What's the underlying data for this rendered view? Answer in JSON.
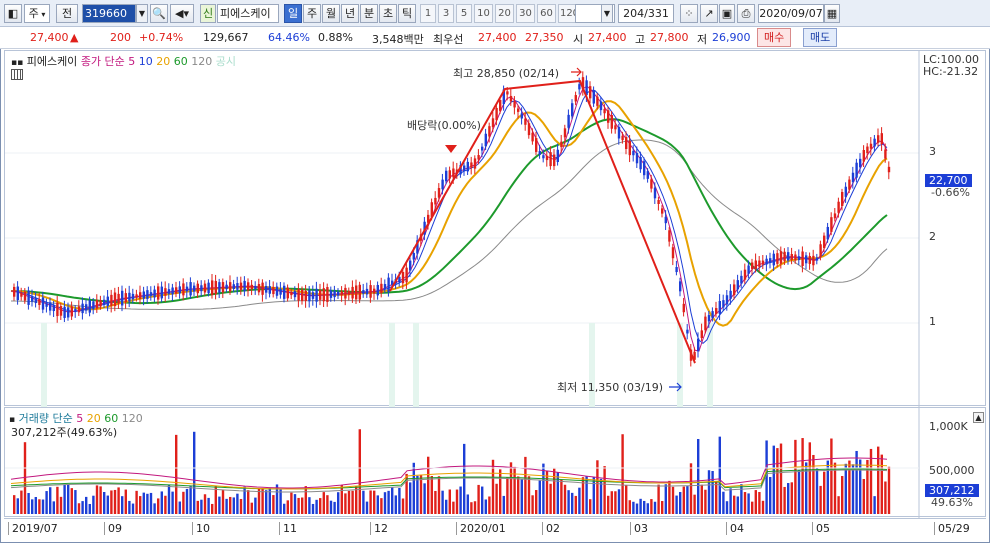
{
  "toolbar": {
    "period_label": "주",
    "prev_label": "전",
    "stock_code": "319660",
    "shin_label": "신",
    "stock_name": "피에스케이",
    "tabs": [
      "일",
      "주",
      "월",
      "년",
      "분",
      "초",
      "틱"
    ],
    "active_tab": "일",
    "intervals": [
      "1",
      "3",
      "5",
      "10",
      "20",
      "30",
      "60",
      "120"
    ],
    "page_counter": "204",
    "page_total": "/331",
    "date": "2020/09/07"
  },
  "quote": {
    "price": "27,400",
    "arrow": "▲",
    "change": "200",
    "change_pct": "+0.74%",
    "volume": "129,667",
    "ratio": "64.46%",
    "turnover": "0.88%",
    "trade_value": "3,548백만",
    "best_label": "최우선",
    "best_ask": "27,400",
    "best_bid": "27,350",
    "open_label": "시",
    "open": "27,400",
    "high_label": "고",
    "high": "27,800",
    "low_label": "저",
    "low": "26,900",
    "buy_label": "매수",
    "sell_label": "매도"
  },
  "price_panel": {
    "name": "피에스케이",
    "close_label": "종가 단순",
    "ma": [
      "5",
      "10",
      "20",
      "60",
      "120"
    ],
    "extra_label": "공시",
    "lc": "LC:100.00",
    "hc": "HC:-21.32",
    "axis": [
      "3",
      "2",
      "1"
    ],
    "current_price": "22,700",
    "current_pct": "-0.66%",
    "annotation_high": "최고 28,850 (02/14)",
    "annotation_low": "최저 11,350 (03/19)",
    "annotation_dividend": "배당락(0.00%)"
  },
  "volume_panel": {
    "label": "거래량 단순",
    "ma": [
      "5",
      "20",
      "60",
      "120"
    ],
    "current": "307,212주(49.63%)",
    "axis": [
      "1,000K",
      "500,000"
    ],
    "current_value": "307,212",
    "current_pct": "49.63%"
  },
  "x_axis": [
    "2019/07",
    "09",
    "10",
    "11",
    "12",
    "2020/01",
    "02",
    "03",
    "04",
    "05",
    "05/29"
  ],
  "colors": {
    "up": "#e0201a",
    "down": "#1c3ed6",
    "ma5": "#c2187e",
    "ma10": "#1c3ed6",
    "ma20": "#e8a200",
    "ma60": "#1d9a2c",
    "ma120": "#8a8a8a"
  }
}
